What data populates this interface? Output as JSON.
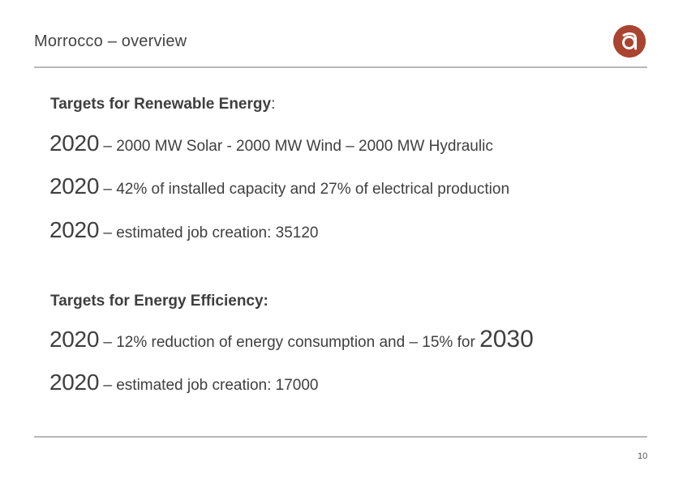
{
  "header": {
    "title": "Morrocco – overview"
  },
  "logo": {
    "glyph": "a",
    "color": "#a94430"
  },
  "renewable": {
    "heading": "Targets for Renewable Energy",
    "heading_suffix": ":",
    "items": [
      {
        "year": "2020",
        "text": " – 2000 MW Solar -  2000 MW Wind – 2000 MW Hydraulic"
      },
      {
        "year": "2020",
        "text": " – 42% of installed capacity and 27% of electrical production"
      },
      {
        "year": "2020",
        "text": " – estimated job creation: 35120"
      }
    ]
  },
  "efficiency": {
    "heading": "Targets for Energy Efficiency:",
    "items": [
      {
        "year": "2020",
        "text": " – 12% reduction of energy consumption and – 15%  for ",
        "year_end": "2030"
      },
      {
        "year": "2020",
        "text": " –  estimated job creation: 17000"
      }
    ]
  },
  "footer": {
    "page_number": "10"
  }
}
